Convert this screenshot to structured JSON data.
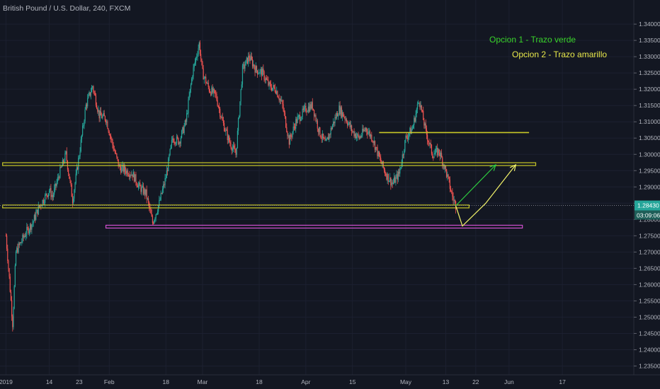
{
  "header": {
    "symbol_title": "British Pound / U.S. Dollar, 240, FXCM"
  },
  "annotations": {
    "option1": "Opcion 1 - Trazo verde",
    "option2": "Opcion 2 - Trazo amarillo"
  },
  "colors": {
    "background": "#131722",
    "up_candle": "#26a69a",
    "down_candle": "#ef5350",
    "yellow_line": "#c8c827",
    "magenta_line": "#cf4fcf",
    "green_arrow": "#2ecc40",
    "yellow_arrow": "#f4f46a",
    "price_badge": "#26a69a"
  },
  "chart_data": {
    "type": "candlestick",
    "ylim": [
      1.2325,
      1.3435
    ],
    "y_ticks": [
      "1.34000",
      "1.33500",
      "1.33000",
      "1.32500",
      "1.32000",
      "1.31500",
      "1.31000",
      "1.30500",
      "1.30000",
      "1.29500",
      "1.29000",
      "1.28500",
      "1.28000",
      "1.27500",
      "1.27000",
      "1.26500",
      "1.26000",
      "1.25500",
      "1.25000",
      "1.24500",
      "1.24000",
      "1.23500"
    ],
    "x_labels": [
      "2019",
      "14",
      "23",
      "Feb",
      "18",
      "Mar",
      "18",
      "Apr",
      "15",
      "May",
      "13",
      "22",
      "Jun",
      "17"
    ],
    "current_price": "1.28430",
    "countdown": "03:09:06",
    "horizontal_levels": [
      {
        "style": "yellow",
        "price": 1.297,
        "from": "Dec 31",
        "to": "Jun 9"
      },
      {
        "style": "yellow",
        "price": 1.284,
        "from": "Dec 31",
        "to": "May 20"
      },
      {
        "style": "yellow",
        "price": 1.3067,
        "from": "Apr 23",
        "to": "Jun 7"
      },
      {
        "style": "magenta",
        "price": 1.2778,
        "from": "Jan 31",
        "to": "Jun 5"
      }
    ],
    "arrows": [
      {
        "name": "green-path",
        "color": "green",
        "points": [
          [
            "May 16",
            1.2842
          ],
          [
            "May 28",
            1.2968
          ]
        ]
      },
      {
        "name": "yellow-path",
        "color": "yellow",
        "points": [
          [
            "May 16",
            1.2842
          ],
          [
            "May 18",
            1.278
          ],
          [
            "May 25",
            1.285
          ],
          [
            "Jun 3",
            1.2968
          ]
        ]
      }
    ],
    "price_series": [
      [
        "Jan 1",
        1.275
      ],
      [
        "Jan 2",
        1.262
      ],
      [
        "Jan 3",
        1.248
      ],
      [
        "Jan 4",
        1.27
      ],
      [
        "Jan 7",
        1.276
      ],
      [
        "Jan 9",
        1.279
      ],
      [
        "Jan 11",
        1.284
      ],
      [
        "Jan 14",
        1.289
      ],
      [
        "Jan 15",
        1.287
      ],
      [
        "Jan 17",
        1.294
      ],
      [
        "Jan 19",
        1.3
      ],
      [
        "Jan 21",
        1.286
      ],
      [
        "Jan 23",
        1.3
      ],
      [
        "Jan 25",
        1.315
      ],
      [
        "Jan 27",
        1.321
      ],
      [
        "Jan 29",
        1.312
      ],
      [
        "Jan 31",
        1.311
      ],
      [
        "Feb 2",
        1.303
      ],
      [
        "Feb 4",
        1.296
      ],
      [
        "Feb 6",
        1.295
      ],
      [
        "Feb 8",
        1.294
      ],
      [
        "Feb 10",
        1.29
      ],
      [
        "Feb 12",
        1.288
      ],
      [
        "Feb 14",
        1.279
      ],
      [
        "Feb 16",
        1.285
      ],
      [
        "Feb 18",
        1.293
      ],
      [
        "Feb 20",
        1.305
      ],
      [
        "Feb 22",
        1.304
      ],
      [
        "Feb 24",
        1.31
      ],
      [
        "Feb 26",
        1.325
      ],
      [
        "Feb 28",
        1.334
      ],
      [
        "Mar 1",
        1.325
      ],
      [
        "Mar 3",
        1.32
      ],
      [
        "Mar 5",
        1.318
      ],
      [
        "Mar 7",
        1.31
      ],
      [
        "Mar 9",
        1.304
      ],
      [
        "Mar 11",
        1.3
      ],
      [
        "Mar 13",
        1.326
      ],
      [
        "Mar 15",
        1.33
      ],
      [
        "Mar 17",
        1.326
      ],
      [
        "Mar 19",
        1.325
      ],
      [
        "Mar 21",
        1.321
      ],
      [
        "Mar 23",
        1.32
      ],
      [
        "Mar 25",
        1.315
      ],
      [
        "Mar 27",
        1.304
      ],
      [
        "Mar 29",
        1.31
      ],
      [
        "Apr 1",
        1.314
      ],
      [
        "Apr 3",
        1.315
      ],
      [
        "Apr 5",
        1.307
      ],
      [
        "Apr 7",
        1.303
      ],
      [
        "Apr 9",
        1.309
      ],
      [
        "Apr 11",
        1.314
      ],
      [
        "Apr 13",
        1.311
      ],
      [
        "Apr 15",
        1.307
      ],
      [
        "Apr 17",
        1.305
      ],
      [
        "Apr 19",
        1.308
      ],
      [
        "Apr 21",
        1.305
      ],
      [
        "Apr 23",
        1.299
      ],
      [
        "Apr 25",
        1.294
      ],
      [
        "Apr 27",
        1.291
      ],
      [
        "Apr 29",
        1.294
      ],
      [
        "May 1",
        1.305
      ],
      [
        "May 3",
        1.308
      ],
      [
        "May 5",
        1.317
      ],
      [
        "May 7",
        1.307
      ],
      [
        "May 9",
        1.3
      ],
      [
        "May 11",
        1.301
      ],
      [
        "May 13",
        1.295
      ],
      [
        "May 15",
        1.287
      ],
      [
        "May 16",
        1.2843
      ]
    ]
  }
}
